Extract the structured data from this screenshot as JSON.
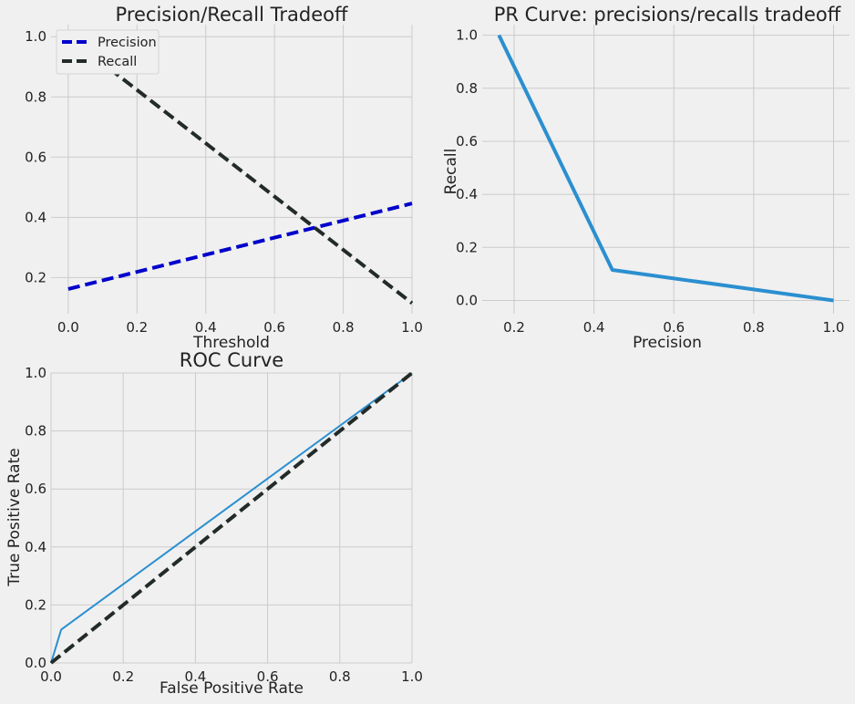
{
  "chart_data": [
    {
      "id": "pr-tradeoff",
      "type": "line",
      "title": "Precision/Recall Tradeoff",
      "xlabel": "Threshold",
      "ylabel": "",
      "xlim": [
        -0.05,
        1.0
      ],
      "ylim": [
        0.08,
        1.04
      ],
      "xticks": [
        "0.0",
        "0.2",
        "0.4",
        "0.6",
        "0.8",
        "1.0"
      ],
      "yticks": [
        "0.2",
        "0.4",
        "0.6",
        "0.8",
        "1.0"
      ],
      "grid": true,
      "legend_position": "top-left",
      "series": [
        {
          "name": "Precision",
          "color": "#0000cc",
          "dash": true,
          "x": [
            0.0,
            1.0
          ],
          "y": [
            0.162,
            0.446
          ]
        },
        {
          "name": "Recall",
          "color": "#222b28",
          "dash": true,
          "x": [
            0.0,
            1.0
          ],
          "y": [
            1.0,
            0.115
          ]
        }
      ]
    },
    {
      "id": "pr-curve",
      "type": "line",
      "title": "PR Curve: precisions/recalls tradeoff",
      "xlabel": "Precision",
      "ylabel": "Recall",
      "xlim": [
        0.12,
        1.04
      ],
      "ylim": [
        -0.05,
        1.04
      ],
      "xticks": [
        "0.2",
        "0.4",
        "0.6",
        "0.8",
        "1.0"
      ],
      "yticks": [
        "0.0",
        "0.2",
        "0.4",
        "0.6",
        "0.8",
        "1.0"
      ],
      "grid": true,
      "series": [
        {
          "color": "#2b8fd0",
          "dash": false,
          "x": [
            0.162,
            0.446,
            1.0
          ],
          "y": [
            1.0,
            0.115,
            0.0
          ]
        }
      ]
    },
    {
      "id": "roc-curve",
      "type": "line",
      "title": "ROC Curve",
      "xlabel": "False Positive Rate",
      "ylabel": "True Positive Rate",
      "xlim": [
        0.0,
        1.0
      ],
      "ylim": [
        0.0,
        1.0
      ],
      "xticks": [
        "0.0",
        "0.2",
        "0.4",
        "0.6",
        "0.8",
        "1.0"
      ],
      "yticks": [
        "0.0",
        "0.2",
        "0.4",
        "0.6",
        "0.8",
        "1.0"
      ],
      "grid": true,
      "series": [
        {
          "color": "#2b8fd0",
          "dash": false,
          "thin": true,
          "x": [
            0.0,
            0.028,
            1.0
          ],
          "y": [
            0.0,
            0.115,
            1.0
          ]
        },
        {
          "color": "#222b28",
          "dash": true,
          "x": [
            0.0,
            1.0
          ],
          "y": [
            0.0,
            1.0
          ]
        }
      ]
    }
  ]
}
